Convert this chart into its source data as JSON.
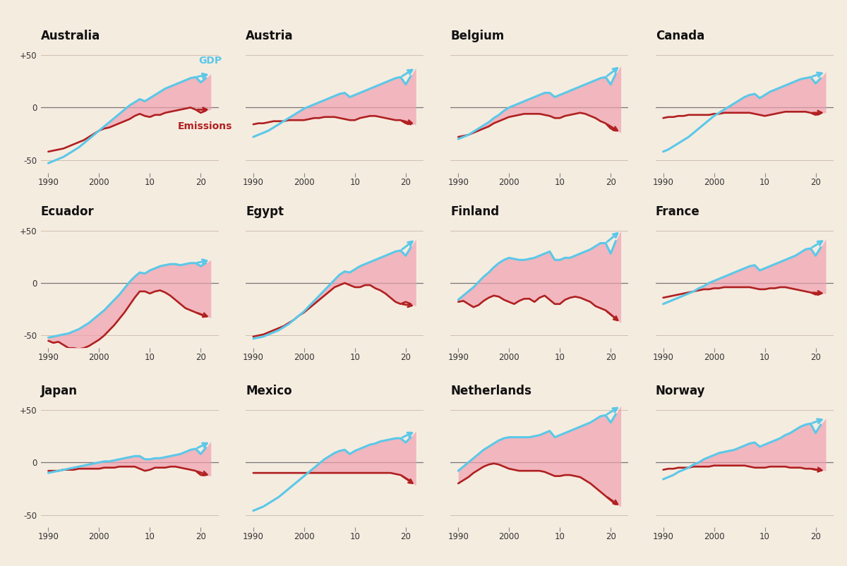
{
  "background_color": "#f5ece0",
  "gdp_color": "#5bc8e8",
  "emissions_color": "#b02020",
  "fill_color": "#f0a0b0",
  "zero_line_color": "#777777",
  "grid_line_color": "#d0c0b0",
  "title_fontsize": 12,
  "tick_fontsize": 8.5,
  "countries": [
    "Australia",
    "Austria",
    "Belgium",
    "Canada",
    "Ecuador",
    "Egypt",
    "Finland",
    "France",
    "Japan",
    "Mexico",
    "Netherlands",
    "Norway"
  ],
  "years": [
    1990,
    1991,
    1992,
    1993,
    1994,
    1995,
    1996,
    1997,
    1998,
    1999,
    2000,
    2001,
    2002,
    2003,
    2004,
    2005,
    2006,
    2007,
    2008,
    2009,
    2010,
    2011,
    2012,
    2013,
    2014,
    2015,
    2016,
    2017,
    2018,
    2019,
    2020,
    2021,
    2022
  ],
  "gdp_data": {
    "Australia": [
      -53,
      -51,
      -49,
      -47,
      -44,
      -41,
      -38,
      -34,
      -30,
      -26,
      -22,
      -18,
      -14,
      -10,
      -6,
      -2,
      2,
      5,
      8,
      6,
      9,
      12,
      15,
      18,
      20,
      22,
      24,
      26,
      28,
      29,
      24,
      28,
      32
    ],
    "Austria": [
      -28,
      -26,
      -24,
      -22,
      -19,
      -16,
      -13,
      -10,
      -7,
      -4,
      -1,
      1,
      3,
      5,
      7,
      9,
      11,
      13,
      14,
      10,
      12,
      14,
      16,
      18,
      20,
      22,
      24,
      26,
      28,
      29,
      22,
      30,
      38
    ],
    "Belgium": [
      -30,
      -28,
      -26,
      -23,
      -20,
      -17,
      -14,
      -10,
      -7,
      -3,
      0,
      2,
      4,
      6,
      8,
      10,
      12,
      14,
      14,
      10,
      12,
      14,
      16,
      18,
      20,
      22,
      24,
      26,
      28,
      29,
      22,
      32,
      40
    ],
    "Canada": [
      -42,
      -40,
      -37,
      -34,
      -31,
      -28,
      -24,
      -20,
      -16,
      -12,
      -8,
      -5,
      -2,
      1,
      4,
      7,
      10,
      12,
      13,
      9,
      12,
      15,
      17,
      19,
      21,
      23,
      25,
      27,
      28,
      29,
      23,
      28,
      34
    ],
    "Ecuador": [
      -52,
      -51,
      -50,
      -49,
      -48,
      -46,
      -44,
      -41,
      -38,
      -34,
      -30,
      -26,
      -21,
      -16,
      -11,
      -5,
      1,
      6,
      10,
      9,
      12,
      14,
      16,
      17,
      18,
      18,
      17,
      18,
      19,
      19,
      16,
      19,
      22
    ],
    "Egypt": [
      -53,
      -52,
      -51,
      -49,
      -47,
      -45,
      -42,
      -39,
      -35,
      -31,
      -27,
      -22,
      -17,
      -12,
      -7,
      -2,
      3,
      8,
      11,
      10,
      13,
      16,
      18,
      20,
      22,
      24,
      26,
      28,
      30,
      31,
      26,
      34,
      42
    ],
    "Finland": [
      -16,
      -12,
      -8,
      -4,
      1,
      6,
      10,
      15,
      19,
      22,
      24,
      23,
      22,
      22,
      23,
      24,
      26,
      28,
      30,
      22,
      22,
      24,
      24,
      26,
      28,
      30,
      32,
      35,
      38,
      38,
      28,
      40,
      50
    ],
    "France": [
      -20,
      -18,
      -16,
      -14,
      -12,
      -10,
      -8,
      -5,
      -3,
      0,
      2,
      4,
      6,
      8,
      10,
      12,
      14,
      16,
      17,
      12,
      14,
      16,
      18,
      20,
      22,
      24,
      26,
      29,
      32,
      33,
      26,
      34,
      42
    ],
    "Japan": [
      -10,
      -9,
      -8,
      -7,
      -6,
      -5,
      -4,
      -3,
      -2,
      -1,
      0,
      1,
      1,
      2,
      3,
      4,
      5,
      6,
      6,
      3,
      3,
      4,
      4,
      5,
      6,
      7,
      8,
      10,
      12,
      13,
      8,
      14,
      20
    ],
    "Mexico": [
      -46,
      -44,
      -42,
      -39,
      -36,
      -33,
      -29,
      -25,
      -21,
      -17,
      -13,
      -9,
      -5,
      -1,
      3,
      6,
      9,
      11,
      12,
      8,
      11,
      13,
      15,
      17,
      18,
      20,
      21,
      22,
      23,
      23,
      19,
      24,
      30
    ],
    "Netherlands": [
      -8,
      -4,
      0,
      4,
      8,
      12,
      15,
      18,
      21,
      23,
      24,
      24,
      24,
      24,
      24,
      25,
      26,
      28,
      30,
      24,
      26,
      28,
      30,
      32,
      34,
      36,
      38,
      41,
      44,
      45,
      38,
      46,
      54
    ],
    "Norway": [
      -16,
      -14,
      -12,
      -9,
      -7,
      -5,
      -2,
      0,
      3,
      5,
      7,
      9,
      10,
      11,
      12,
      14,
      16,
      18,
      19,
      15,
      17,
      19,
      21,
      23,
      26,
      28,
      31,
      34,
      36,
      37,
      28,
      36,
      42
    ]
  },
  "emissions_data": {
    "Australia": [
      -42,
      -41,
      -40,
      -39,
      -37,
      -35,
      -33,
      -31,
      -28,
      -25,
      -22,
      -20,
      -19,
      -17,
      -15,
      -13,
      -11,
      -8,
      -6,
      -8,
      -9,
      -7,
      -7,
      -5,
      -4,
      -3,
      -2,
      -1,
      0,
      -2,
      -5,
      -3,
      -2
    ],
    "Austria": [
      -16,
      -15,
      -15,
      -14,
      -13,
      -13,
      -13,
      -12,
      -12,
      -12,
      -12,
      -11,
      -10,
      -10,
      -9,
      -9,
      -9,
      -10,
      -11,
      -12,
      -12,
      -10,
      -9,
      -8,
      -8,
      -9,
      -10,
      -11,
      -12,
      -12,
      -15,
      -16,
      -16
    ],
    "Belgium": [
      -28,
      -27,
      -26,
      -24,
      -22,
      -20,
      -18,
      -15,
      -13,
      -11,
      -9,
      -8,
      -7,
      -6,
      -6,
      -6,
      -6,
      -7,
      -8,
      -10,
      -10,
      -8,
      -7,
      -6,
      -5,
      -6,
      -8,
      -10,
      -13,
      -15,
      -20,
      -22,
      -24
    ],
    "Canada": [
      -10,
      -9,
      -9,
      -8,
      -8,
      -7,
      -7,
      -7,
      -7,
      -7,
      -6,
      -6,
      -5,
      -5,
      -5,
      -5,
      -5,
      -5,
      -6,
      -7,
      -8,
      -7,
      -6,
      -5,
      -4,
      -4,
      -4,
      -4,
      -4,
      -5,
      -7,
      -5,
      -5
    ],
    "Ecuador": [
      -55,
      -57,
      -56,
      -59,
      -62,
      -62,
      -63,
      -62,
      -60,
      -57,
      -54,
      -50,
      -45,
      -40,
      -34,
      -28,
      -21,
      -14,
      -8,
      -8,
      -10,
      -8,
      -7,
      -9,
      -12,
      -16,
      -20,
      -24,
      -26,
      -28,
      -30,
      -32,
      -33
    ],
    "Egypt": [
      -51,
      -50,
      -49,
      -47,
      -45,
      -43,
      -41,
      -38,
      -35,
      -31,
      -28,
      -24,
      -20,
      -16,
      -12,
      -8,
      -4,
      -2,
      0,
      -2,
      -4,
      -4,
      -2,
      -2,
      -5,
      -7,
      -10,
      -14,
      -18,
      -20,
      -18,
      -20,
      -22
    ],
    "Finland": [
      -18,
      -17,
      -20,
      -23,
      -21,
      -17,
      -14,
      -12,
      -13,
      -16,
      -18,
      -20,
      -17,
      -15,
      -15,
      -18,
      -14,
      -12,
      -16,
      -20,
      -20,
      -16,
      -14,
      -13,
      -14,
      -16,
      -18,
      -22,
      -24,
      -26,
      -30,
      -34,
      -38
    ],
    "France": [
      -14,
      -13,
      -12,
      -11,
      -10,
      -9,
      -8,
      -7,
      -6,
      -6,
      -5,
      -5,
      -4,
      -4,
      -4,
      -4,
      -4,
      -4,
      -5,
      -6,
      -6,
      -5,
      -5,
      -4,
      -4,
      -5,
      -6,
      -7,
      -8,
      -9,
      -11,
      -10,
      -10
    ],
    "Japan": [
      -8,
      -8,
      -8,
      -7,
      -7,
      -7,
      -6,
      -6,
      -6,
      -6,
      -6,
      -5,
      -5,
      -5,
      -4,
      -4,
      -4,
      -4,
      -6,
      -8,
      -7,
      -5,
      -5,
      -5,
      -4,
      -4,
      -5,
      -6,
      -7,
      -8,
      -12,
      -12,
      -13
    ],
    "Mexico": [
      -10,
      -10,
      -10,
      -10,
      -10,
      -10,
      -10,
      -10,
      -10,
      -10,
      -10,
      -10,
      -10,
      -10,
      -10,
      -10,
      -10,
      -10,
      -10,
      -10,
      -10,
      -10,
      -10,
      -10,
      -10,
      -10,
      -10,
      -10,
      -11,
      -12,
      -15,
      -18,
      -22
    ],
    "Netherlands": [
      -20,
      -17,
      -14,
      -10,
      -7,
      -4,
      -2,
      -1,
      -2,
      -4,
      -6,
      -7,
      -8,
      -8,
      -8,
      -8,
      -8,
      -9,
      -11,
      -13,
      -13,
      -12,
      -12,
      -13,
      -14,
      -17,
      -20,
      -24,
      -28,
      -32,
      -36,
      -40,
      -42
    ],
    "Norway": [
      -7,
      -6,
      -6,
      -5,
      -5,
      -5,
      -4,
      -4,
      -4,
      -4,
      -3,
      -3,
      -3,
      -3,
      -3,
      -3,
      -3,
      -4,
      -5,
      -5,
      -5,
      -4,
      -4,
      -4,
      -4,
      -5,
      -5,
      -5,
      -6,
      -6,
      -7,
      -7,
      -8
    ]
  }
}
